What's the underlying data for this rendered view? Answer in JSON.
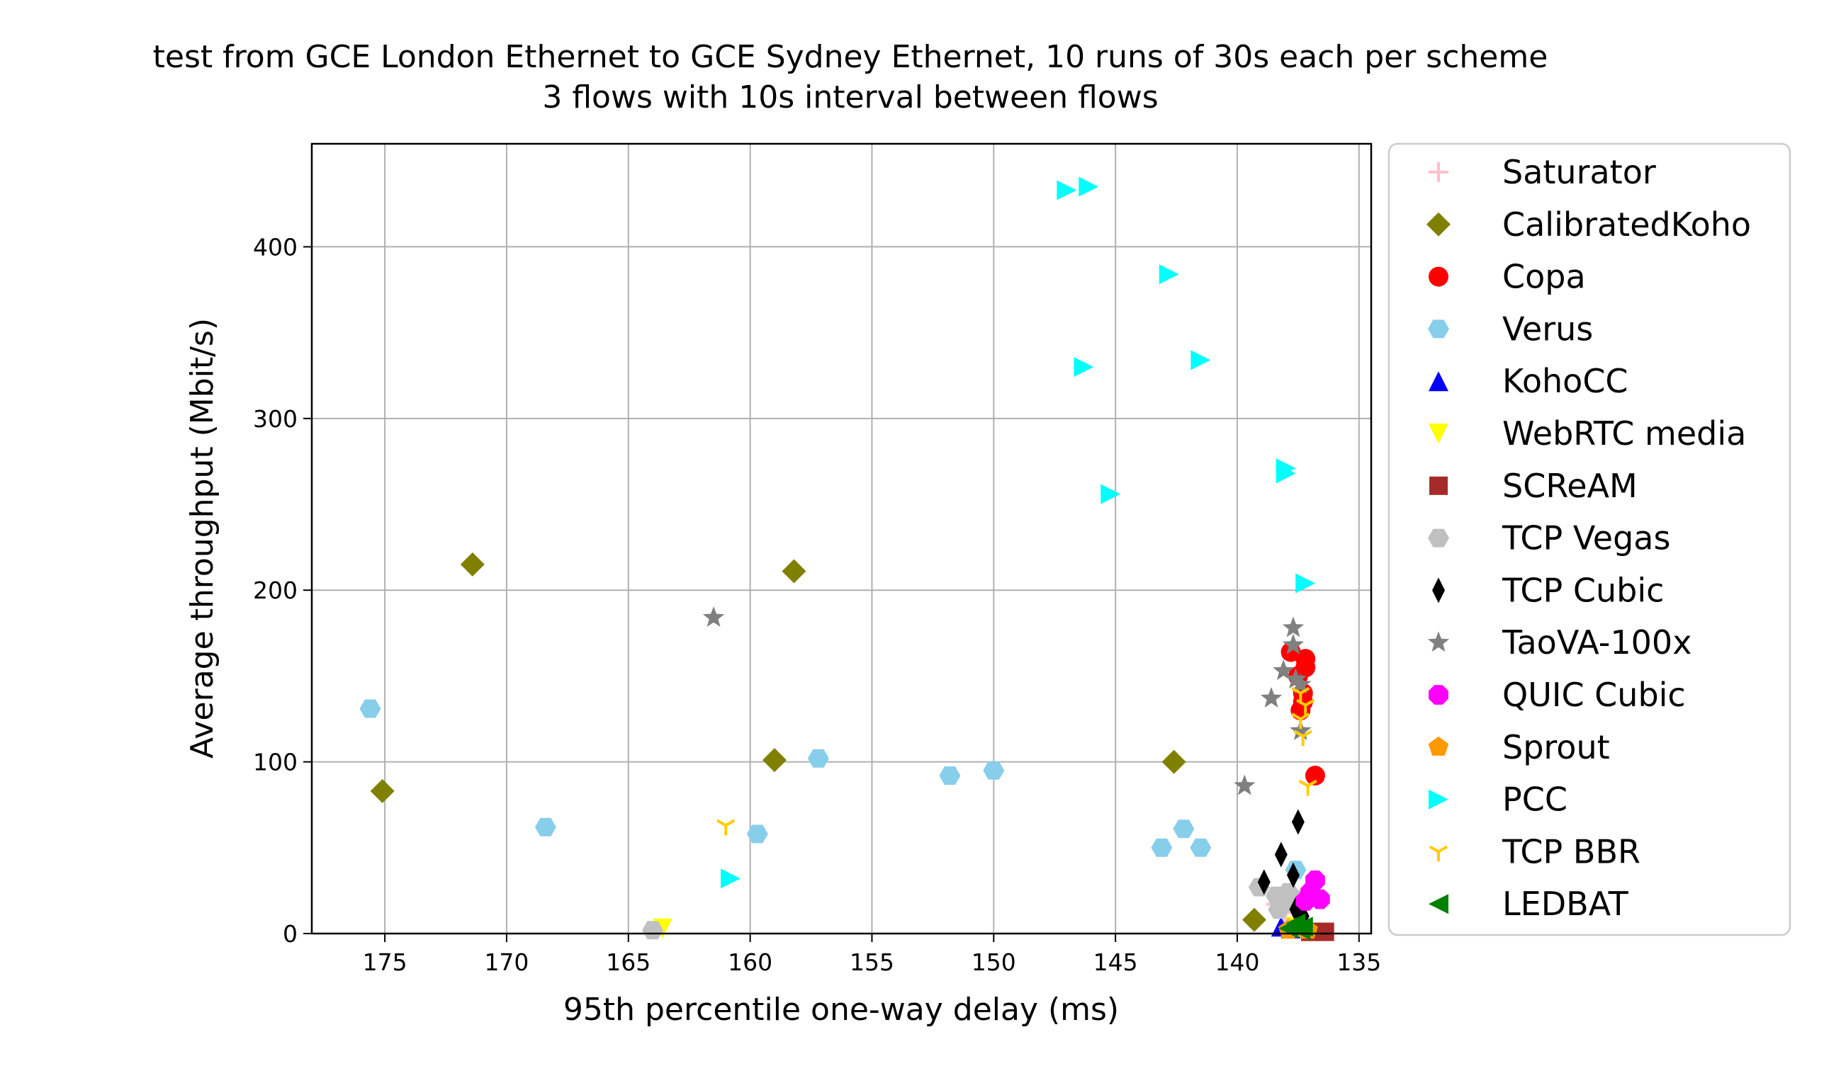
{
  "chart_data": {
    "type": "scatter",
    "title": "test from GCE London Ethernet to GCE Sydney Ethernet, 10 runs of 30s each per scheme",
    "subtitle": "3 flows with 10s interval between flows",
    "xlabel": "95th percentile one-way delay (ms)",
    "ylabel": "Average throughput (Mbit/s)",
    "xlim": [
      178,
      134.5
    ],
    "ylim": [
      0,
      460
    ],
    "x_ticks": [
      175,
      170,
      165,
      160,
      155,
      150,
      145,
      140,
      135
    ],
    "y_ticks": [
      0,
      100,
      200,
      300,
      400
    ],
    "grid": true,
    "legend_position": "outside-right",
    "series": [
      {
        "name": "Saturator",
        "marker": "plus",
        "color": "#ffc0cb",
        "points": [
          [
            138.4,
            17
          ],
          [
            138.0,
            12
          ],
          [
            137.7,
            8
          ]
        ]
      },
      {
        "name": "CalibratedKoho",
        "marker": "diamond",
        "color": "#808000",
        "points": [
          [
            171.4,
            215
          ],
          [
            158.2,
            211
          ],
          [
            159.0,
            101
          ],
          [
            142.6,
            100
          ],
          [
            175.1,
            83
          ],
          [
            139.3,
            8
          ]
        ]
      },
      {
        "name": "Copa",
        "marker": "circle",
        "color": "#ff0000",
        "points": [
          [
            137.8,
            164
          ],
          [
            137.2,
            160
          ],
          [
            137.2,
            155
          ],
          [
            137.5,
            150
          ],
          [
            137.3,
            140
          ],
          [
            137.3,
            135
          ],
          [
            137.4,
            130
          ],
          [
            136.8,
            92
          ]
        ]
      },
      {
        "name": "Verus",
        "marker": "hexagon",
        "color": "#87ceeb",
        "points": [
          [
            175.6,
            131
          ],
          [
            157.2,
            102
          ],
          [
            150.0,
            95
          ],
          [
            151.8,
            92
          ],
          [
            168.4,
            62
          ],
          [
            142.2,
            61
          ],
          [
            159.7,
            58
          ],
          [
            143.1,
            50
          ],
          [
            141.5,
            50
          ],
          [
            137.6,
            37
          ]
        ]
      },
      {
        "name": "KohoCC",
        "marker": "triangle-up",
        "color": "#0000ff",
        "points": [
          [
            138.2,
            4
          ],
          [
            137.8,
            3
          ]
        ]
      },
      {
        "name": "WebRTC media",
        "marker": "triangle-down",
        "color": "#ffff00",
        "points": [
          [
            163.6,
            3
          ],
          [
            137.6,
            4
          ]
        ]
      },
      {
        "name": "SCReAM",
        "marker": "square",
        "color": "#a52a2a",
        "points": [
          [
            136.4,
            1
          ],
          [
            137.0,
            1
          ]
        ]
      },
      {
        "name": "TCP Vegas",
        "marker": "hexagon",
        "color": "#c0c0c0",
        "points": [
          [
            164.0,
            2
          ],
          [
            139.1,
            27
          ],
          [
            138.4,
            22
          ],
          [
            138.1,
            18
          ],
          [
            137.9,
            24
          ],
          [
            137.6,
            20
          ],
          [
            138.3,
            14
          ]
        ]
      },
      {
        "name": "TCP Cubic",
        "marker": "thin-diamond",
        "color": "#000000",
        "points": [
          [
            137.5,
            65
          ],
          [
            138.2,
            46
          ],
          [
            137.7,
            34
          ],
          [
            138.9,
            30
          ],
          [
            137.6,
            14
          ],
          [
            137.3,
            10
          ]
        ]
      },
      {
        "name": "TaoVA-100x",
        "marker": "star",
        "color": "#808080",
        "points": [
          [
            161.5,
            184
          ],
          [
            137.7,
            178
          ],
          [
            137.7,
            168
          ],
          [
            138.1,
            153
          ],
          [
            137.6,
            148
          ],
          [
            137.4,
            145
          ],
          [
            138.6,
            137
          ],
          [
            139.7,
            86
          ],
          [
            137.4,
            118
          ]
        ]
      },
      {
        "name": "QUIC Cubic",
        "marker": "octagon",
        "color": "#ff00ff",
        "points": [
          [
            136.8,
            31
          ],
          [
            137.0,
            24
          ],
          [
            136.6,
            20
          ],
          [
            137.2,
            19
          ],
          [
            136.9,
            22
          ]
        ]
      },
      {
        "name": "Sprout",
        "marker": "pentagon",
        "color": "#ff9900",
        "points": [
          [
            137.6,
            3
          ],
          [
            137.1,
            2
          ],
          [
            137.9,
            2
          ]
        ]
      },
      {
        "name": "PCC",
        "marker": "triangle-right",
        "color": "#00ffff",
        "points": [
          [
            147.0,
            433
          ],
          [
            146.1,
            435
          ],
          [
            142.8,
            384
          ],
          [
            141.5,
            334
          ],
          [
            146.3,
            330
          ],
          [
            138.0,
            271
          ],
          [
            138.0,
            268
          ],
          [
            145.2,
            256
          ],
          [
            137.2,
            204
          ],
          [
            160.8,
            32
          ]
        ]
      },
      {
        "name": "TCP BBR",
        "marker": "tri-down",
        "color": "#ffcc00",
        "points": [
          [
            161.0,
            63
          ],
          [
            137.4,
            140
          ],
          [
            137.2,
            133
          ],
          [
            137.4,
            125
          ],
          [
            137.3,
            115
          ],
          [
            137.1,
            86
          ],
          [
            137.6,
            6
          ]
        ]
      },
      {
        "name": "LEDBAT",
        "marker": "triangle-left",
        "color": "#008000",
        "points": [
          [
            137.6,
            6
          ],
          [
            137.3,
            4
          ],
          [
            137.9,
            3
          ],
          [
            137.4,
            2
          ]
        ]
      }
    ]
  }
}
